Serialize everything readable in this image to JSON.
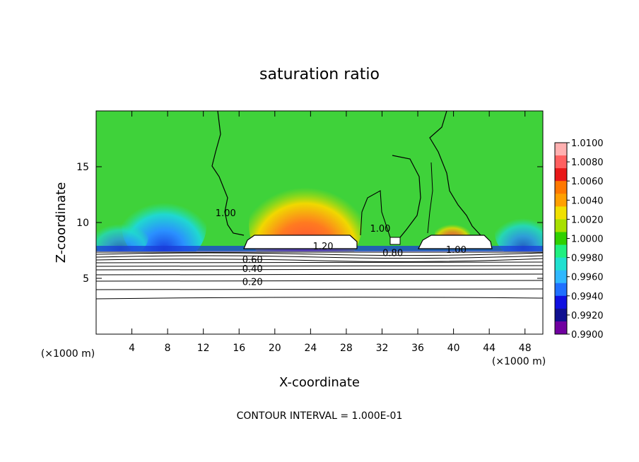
{
  "chart_data": {
    "type": "heatmap",
    "title": "saturation ratio",
    "xlabel": "X-coordinate",
    "ylabel": "Z-coordinate",
    "x_unit_left": "(×1000 m)",
    "x_unit_right": "(×1000 m)",
    "xlim": [
      0,
      50
    ],
    "ylim": [
      0,
      20
    ],
    "x_ticks": [
      4,
      8,
      12,
      16,
      20,
      24,
      28,
      32,
      36,
      40,
      44,
      48
    ],
    "y_ticks": [
      5,
      10,
      15
    ],
    "footer": "CONTOUR INTERVAL = 1.000E-01",
    "colorbar": {
      "labels": [
        "1.0100",
        "1.0080",
        "1.0060",
        "1.0040",
        "1.0020",
        "1.0000",
        "0.9980",
        "0.9960",
        "0.9940",
        "0.9920",
        "0.9900"
      ],
      "colors": [
        "#ffb0b0",
        "#ff6060",
        "#e81818",
        "#ff7800",
        "#ffa000",
        "#f0e000",
        "#a8e000",
        "#30d000",
        "#20f080",
        "#20e0d0",
        "#30b8ff",
        "#2070ff",
        "#1010e0",
        "#101090",
        "#7000a0"
      ]
    },
    "contour_labels": [
      {
        "text": "1.00",
        "x": 14.5,
        "z": 10.9
      },
      {
        "text": "1.00",
        "x": 31.8,
        "z": 9.5
      },
      {
        "text": "0.80",
        "x": 33.2,
        "z": 7.3
      },
      {
        "text": "1.20",
        "x": 25.4,
        "z": 7.9
      },
      {
        "text": "1.00",
        "x": 40.3,
        "z": 7.6
      },
      {
        "text": "0.60",
        "x": 17.5,
        "z": 6.7
      },
      {
        "text": "0.40",
        "x": 17.5,
        "z": 5.9
      },
      {
        "text": "0.20",
        "x": 17.5,
        "z": 4.7
      }
    ]
  }
}
